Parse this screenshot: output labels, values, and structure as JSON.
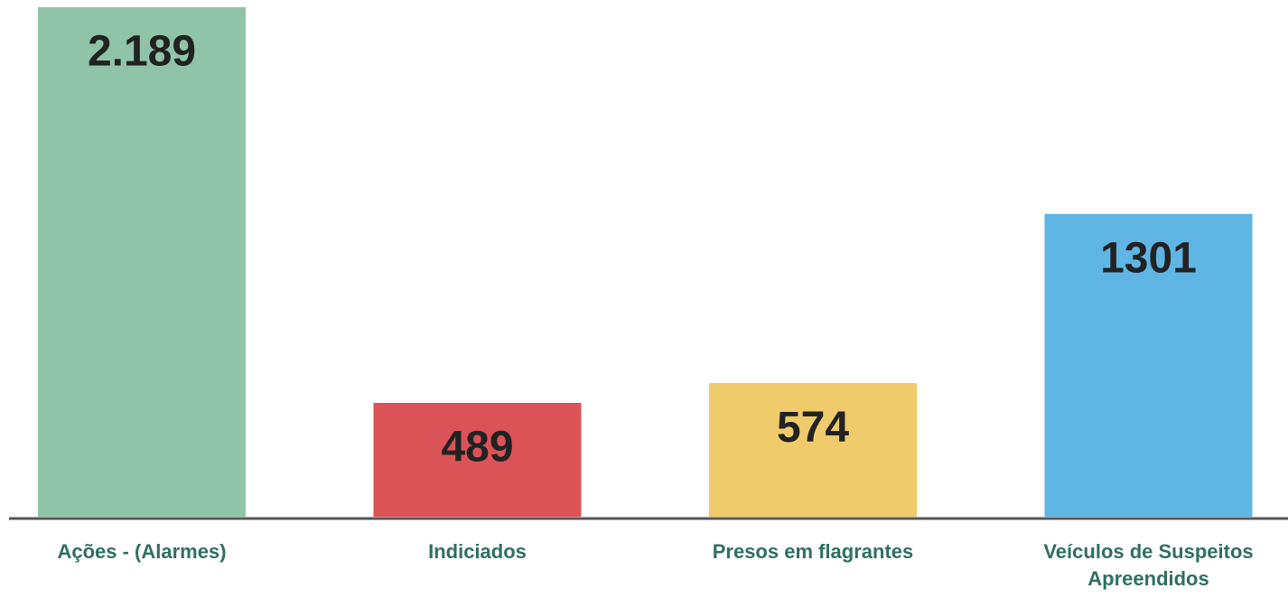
{
  "chart_data": {
    "type": "bar",
    "categories": [
      "Ações - (Alarmes)",
      "Indiciados",
      "Presos em flagrantes",
      "Veículos de Suspeitos Apreendidos"
    ],
    "values": [
      2189,
      489,
      574,
      1301
    ],
    "value_labels": [
      "2.189",
      "489",
      "574",
      "1301"
    ],
    "colors": [
      "#8fc4a9",
      "#dc5357",
      "#f0cb6b",
      "#5fb6e5"
    ]
  }
}
